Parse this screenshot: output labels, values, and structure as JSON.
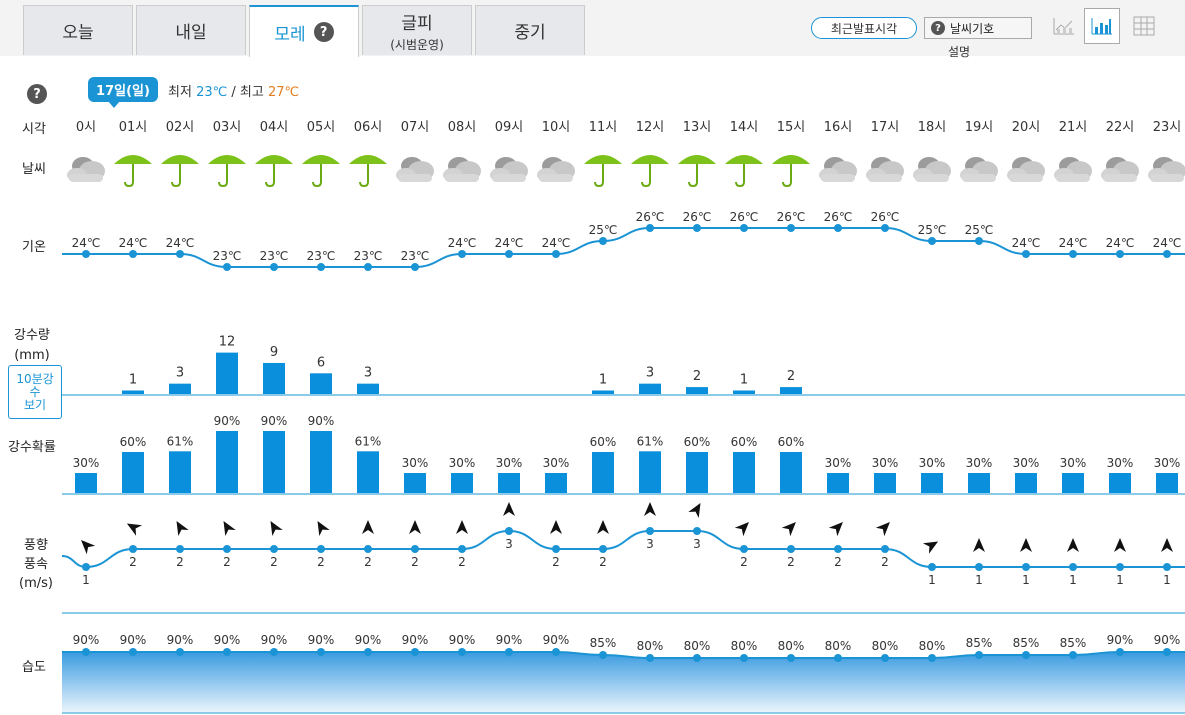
{
  "tabs": [
    {
      "label": "오늘",
      "sub": ""
    },
    {
      "label": "내일",
      "sub": ""
    },
    {
      "label": "모레",
      "sub": ""
    },
    {
      "label": "글피",
      "sub": "(시범운영)"
    },
    {
      "label": "중기",
      "sub": ""
    }
  ],
  "active_tab": "모레",
  "tab_help_icon": "?",
  "toolbar": {
    "recent_btn": "최근발표시각",
    "legend_btn": "날씨기호",
    "legend_sub": "설명",
    "help_icon": "?"
  },
  "views": [
    "line-chart-icon",
    "bar-chart-icon",
    "table-icon"
  ],
  "active_view": "bar-chart-icon",
  "header": {
    "help_icon": "?",
    "date": "17일(일)",
    "min_label": "최저",
    "min_temp": "23℃",
    "sep": "/",
    "max_label": "최고",
    "max_temp": "27℃"
  },
  "labels": {
    "time": "시각",
    "weather": "날씨",
    "temp": "기온",
    "rain_amount_1": "강수량",
    "rain_amount_2": "(mm)",
    "rain_prob": "강수확률",
    "wind_1": "풍향",
    "wind_2": "풍속",
    "wind_3": "(m/s)",
    "humidity": "습도",
    "ten_min_button": "10분강\n수\n보기"
  },
  "colors": {
    "accent": "#1a94d4",
    "bar": "#0a8fdc",
    "high": "#e37d1f"
  },
  "chart_data": {
    "type": "table",
    "hours": [
      "0시",
      "01시",
      "02시",
      "03시",
      "04시",
      "05시",
      "06시",
      "07시",
      "08시",
      "09시",
      "10시",
      "11시",
      "12시",
      "13시",
      "14시",
      "15시",
      "16시",
      "17시",
      "18시",
      "19시",
      "20시",
      "21시",
      "22시",
      "23시"
    ],
    "weather": [
      "cloud",
      "rain",
      "rain",
      "rain",
      "rain",
      "rain",
      "rain",
      "cloud",
      "cloud",
      "cloud",
      "cloud",
      "rain",
      "rain",
      "rain",
      "rain",
      "rain",
      "cloud",
      "cloud",
      "cloud",
      "cloud",
      "cloud",
      "cloud",
      "cloud",
      "cloud"
    ],
    "temperature_c": [
      24,
      24,
      24,
      23,
      23,
      23,
      23,
      23,
      24,
      24,
      24,
      25,
      26,
      26,
      26,
      26,
      26,
      26,
      25,
      25,
      24,
      24,
      24,
      24
    ],
    "temperature_unit": "℃",
    "precip_mm": [
      null,
      1,
      3,
      12,
      9,
      6,
      3,
      null,
      null,
      null,
      null,
      1,
      3,
      2,
      1,
      2,
      null,
      null,
      null,
      null,
      null,
      null,
      null,
      null
    ],
    "precip_prob_pct": [
      30,
      60,
      61,
      90,
      90,
      90,
      61,
      30,
      30,
      30,
      30,
      60,
      61,
      60,
      60,
      60,
      30,
      30,
      30,
      30,
      30,
      30,
      30,
      30
    ],
    "wind_speed_ms": [
      1,
      2,
      2,
      2,
      2,
      2,
      2,
      2,
      2,
      3,
      2,
      2,
      3,
      3,
      2,
      2,
      2,
      2,
      1,
      1,
      1,
      1,
      1,
      1
    ],
    "wind_dir_deg": [
      315,
      300,
      330,
      330,
      330,
      330,
      0,
      0,
      0,
      0,
      0,
      0,
      0,
      30,
      45,
      45,
      45,
      45,
      60,
      0,
      0,
      0,
      0,
      0
    ],
    "humidity_pct": [
      90,
      90,
      90,
      90,
      90,
      90,
      90,
      90,
      90,
      90,
      90,
      85,
      80,
      80,
      80,
      80,
      80,
      80,
      80,
      85,
      85,
      85,
      90,
      90
    ]
  }
}
